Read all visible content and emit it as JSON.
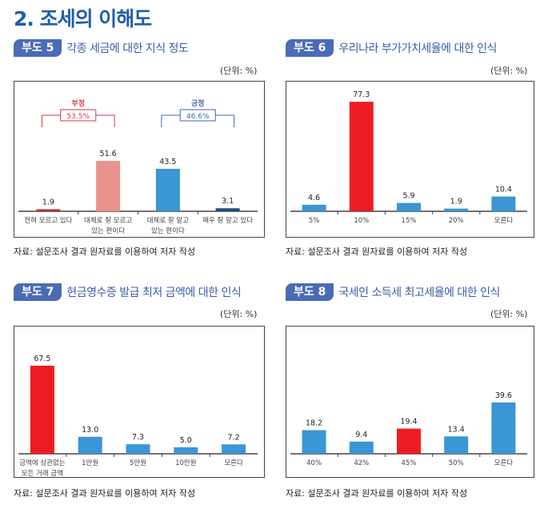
{
  "section_title": "2. 조세의 이해도",
  "chart_data": [
    {
      "type": "bar",
      "badge": "부도 5",
      "title": "각종 세금에 대한 지식 정도",
      "unit": "(단위: %)",
      "source": "자료: 설문조사 결과 원자료를 이용하여 저자 작성",
      "categories": [
        [
          "전혀 모르고 있다"
        ],
        [
          "대체로 잘 모르고",
          "있는 편이다"
        ],
        [
          "대체로 잘 알고",
          "있는 편이다"
        ],
        [
          "매우 잘 알고 있다"
        ]
      ],
      "values": [
        1.9,
        51.6,
        43.5,
        3.1
      ],
      "value_labels": [
        "1.9",
        "51.6",
        "43.5",
        "3.1"
      ],
      "colors": [
        "#c1272d",
        "#e8918d",
        "#3a96d4",
        "#1f4e79"
      ],
      "groups": [
        {
          "label": "부정",
          "value": "53.5%",
          "from": 0,
          "to": 1,
          "color": "#d23a4a"
        },
        {
          "label": "긍정",
          "value": "46.6%",
          "from": 2,
          "to": 3,
          "color": "#3d67a8"
        }
      ]
    },
    {
      "type": "bar",
      "badge": "부도 6",
      "title": "우리나라 부가가치세율에 대한 인식",
      "unit": "(단위: %)",
      "source": "자료: 설문조사 결과 원자료를 이용하여 저자 작성",
      "categories": [
        [
          "5%"
        ],
        [
          "10%"
        ],
        [
          "15%"
        ],
        [
          "20%"
        ],
        [
          "모른다"
        ]
      ],
      "values": [
        4.6,
        77.3,
        5.9,
        1.9,
        10.4
      ],
      "value_labels": [
        "4.6",
        "77.3",
        "5.9",
        "1.9",
        "10.4"
      ],
      "colors": [
        "#3a96d4",
        "#ed1c24",
        "#3a96d4",
        "#3a96d4",
        "#3a96d4"
      ]
    },
    {
      "type": "bar",
      "badge": "부도 7",
      "title": "현금영수증 발급 최저 금액에 대한 인식",
      "unit": "(단위: %)",
      "source": "자료: 설문조사 결과 원자료를 이용하여 저자 작성",
      "categories": [
        [
          "금액에 상관없는",
          "모든 거래 금액"
        ],
        [
          "1만원"
        ],
        [
          "5만원"
        ],
        [
          "10만원"
        ],
        [
          "모른다"
        ]
      ],
      "values": [
        67.5,
        13.0,
        7.3,
        5.0,
        7.2
      ],
      "value_labels": [
        "67.5",
        "13.0",
        "7.3",
        "5.0",
        "7.2"
      ],
      "colors": [
        "#ed1c24",
        "#3a96d4",
        "#3a96d4",
        "#3a96d4",
        "#3a96d4"
      ]
    },
    {
      "type": "bar",
      "badge": "부도 8",
      "title": "국세인 소득세 최고세율에 대한 인식",
      "unit": "(단위: %)",
      "source": "자료: 설문조사 결과 원자료를 이용하여 저자 작성",
      "categories": [
        [
          "40%"
        ],
        [
          "42%"
        ],
        [
          "45%"
        ],
        [
          "50%"
        ],
        [
          "모른다"
        ]
      ],
      "values": [
        18.2,
        9.4,
        19.4,
        13.4,
        39.6
      ],
      "value_labels": [
        "18.2",
        "9.4",
        "19.4",
        "13.4",
        "39.6"
      ],
      "colors": [
        "#3a96d4",
        "#3a96d4",
        "#ed1c24",
        "#3a96d4",
        "#3a96d4"
      ]
    }
  ]
}
